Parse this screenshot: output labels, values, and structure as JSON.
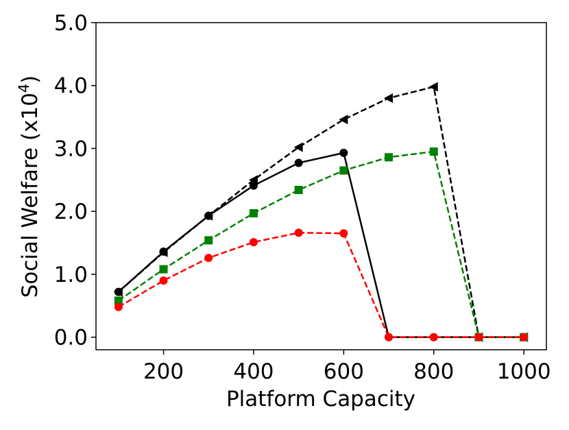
{
  "chart_data": {
    "type": "line",
    "xlabel": "Platform Capacity",
    "ylabel": "Social Welfare (x10",
    "ylabel_exponent": "4",
    "ylabel_suffix": ")",
    "x": [
      100,
      200,
      300,
      400,
      500,
      600,
      700,
      800,
      900,
      1000
    ],
    "series": [
      {
        "color": "#000000",
        "linestyle": "dashed",
        "marker": "triangle-left",
        "values": [
          0.72,
          1.35,
          1.93,
          2.5,
          3.02,
          3.46,
          3.8,
          3.98,
          0,
          0
        ]
      },
      {
        "color": "#000000",
        "linestyle": "solid",
        "marker": "circle",
        "values": [
          0.72,
          1.36,
          1.93,
          2.41,
          2.77,
          2.93,
          0,
          0,
          0,
          0
        ]
      },
      {
        "color": "#008000",
        "linestyle": "dashed",
        "marker": "square",
        "values": [
          0.58,
          1.08,
          1.54,
          1.97,
          2.34,
          2.65,
          2.86,
          2.95,
          0,
          0
        ]
      },
      {
        "color": "#ff0000",
        "linestyle": "dashed",
        "marker": "circle",
        "values": [
          0.48,
          0.9,
          1.26,
          1.51,
          1.66,
          1.65,
          0,
          0,
          0,
          0
        ]
      }
    ],
    "xlim": [
      50,
      1050
    ],
    "xticks": [
      200,
      400,
      600,
      800,
      1000
    ],
    "ylim": [
      -0.2,
      5.0
    ],
    "yticks": [
      {
        "value": 0,
        "label": "0.0"
      },
      {
        "value": 1,
        "label": "1.0"
      },
      {
        "value": 2,
        "label": "2.0"
      },
      {
        "value": 3,
        "label": "3.0"
      },
      {
        "value": 4,
        "label": "4.0"
      },
      {
        "value": 5,
        "label": "5.0"
      }
    ]
  }
}
